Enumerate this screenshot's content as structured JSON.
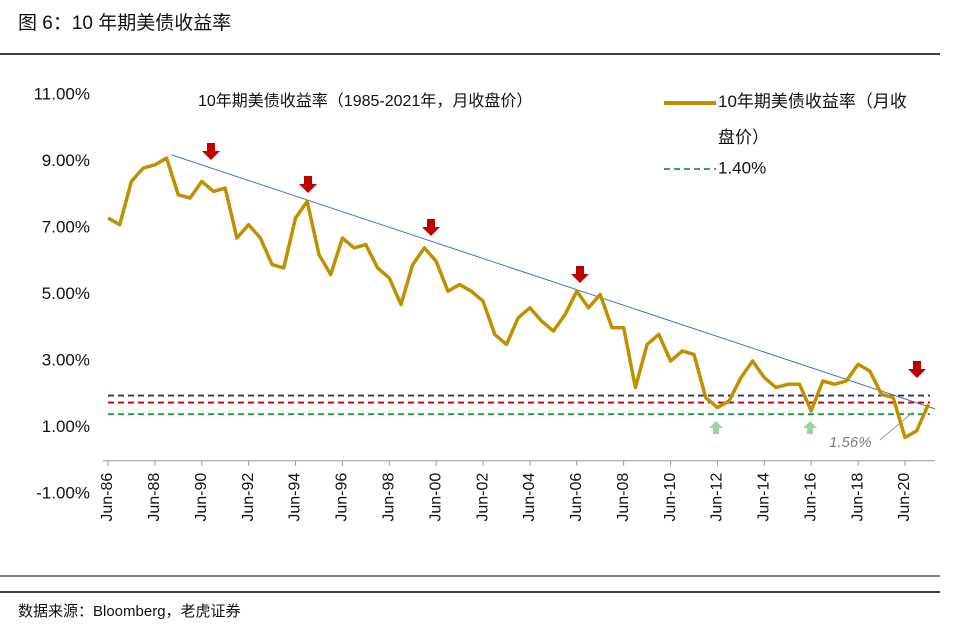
{
  "page_title": "图 6：10 年期美债收益率",
  "source": "数据来源：Bloomberg，老虎证券",
  "chart_data": {
    "type": "line",
    "title": "10年期美债收益率（1985-2021年，月收盘价）",
    "categories": [
      "Jun-86",
      null,
      null,
      null,
      "Jun-88",
      null,
      null,
      null,
      "Jun-90",
      null,
      null,
      null,
      "Jun-92",
      null,
      null,
      null,
      "Jun-94",
      null,
      null,
      null,
      "Jun-96",
      null,
      null,
      null,
      "Jun-98",
      null,
      null,
      null,
      "Jun-00",
      null,
      null,
      null,
      "Jun-02",
      null,
      null,
      null,
      "Jun-04",
      null,
      null,
      null,
      "Jun-06",
      null,
      null,
      null,
      "Jun-08",
      null,
      null,
      null,
      "Jun-10",
      null,
      null,
      null,
      "Jun-12",
      null,
      null,
      null,
      "Jun-14",
      null,
      null,
      null,
      "Jun-16",
      null,
      null,
      null,
      "Jun-18",
      null,
      null,
      null,
      "Jun-20",
      null,
      null
    ],
    "series": [
      {
        "name": "10年期美债收益率（月收盘价）",
        "color": "#bf9000",
        "values": [
          7.3,
          7.1,
          8.4,
          8.8,
          8.9,
          9.1,
          8.0,
          7.9,
          8.4,
          8.1,
          8.2,
          6.7,
          7.1,
          6.7,
          5.9,
          5.8,
          7.3,
          7.8,
          6.2,
          5.6,
          6.7,
          6.4,
          6.5,
          5.8,
          5.5,
          4.7,
          5.9,
          6.4,
          6.0,
          5.1,
          5.3,
          5.1,
          4.8,
          3.8,
          3.5,
          4.3,
          4.6,
          4.2,
          3.9,
          4.4,
          5.1,
          4.6,
          5.0,
          4.0,
          4.0,
          2.2,
          3.5,
          3.8,
          3.0,
          3.3,
          3.2,
          1.9,
          1.6,
          1.8,
          2.5,
          3.0,
          2.5,
          2.2,
          2.3,
          2.3,
          1.5,
          2.4,
          2.3,
          2.4,
          2.9,
          2.7,
          2.0,
          1.9,
          0.7,
          0.9,
          1.7
        ]
      }
    ],
    "reference_lines": [
      {
        "name": "1.40%",
        "value": 1.4,
        "color": "#1f9a48"
      },
      {
        "value": 1.75,
        "color": "#c00000"
      },
      {
        "value": 1.96,
        "color": "#2f2f6f"
      }
    ],
    "trend_line": {
      "color": "#4472c4",
      "values": [
        9.2,
        1.56
      ]
    },
    "annotation": "1.56%",
    "ylim": [
      -1,
      11
    ],
    "yticks": [
      {
        "value": -1,
        "label": "-1.00%"
      },
      {
        "value": 1,
        "label": "1.00%"
      },
      {
        "value": 3,
        "label": "3.00%"
      },
      {
        "value": 5,
        "label": "5.00%"
      },
      {
        "value": 7,
        "label": "7.00%"
      },
      {
        "value": 9,
        "label": "9.00%"
      },
      {
        "value": 11,
        "label": "11.00%"
      }
    ]
  }
}
